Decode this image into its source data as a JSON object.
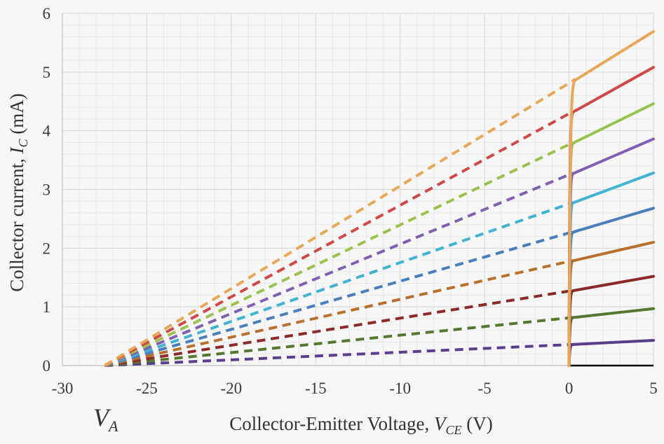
{
  "chart_data": {
    "type": "line",
    "title": "",
    "xlabel": {
      "text": "Collector-Emitter Voltage, ",
      "symbol": "V",
      "subscript": "CE",
      "unit": " (V)"
    },
    "ylabel": {
      "text": "Collector current, ",
      "symbol": "I",
      "subscript": "C",
      "unit": " (mA)"
    },
    "annotation": {
      "symbol": "V",
      "subscript": "A",
      "x": -27.5
    },
    "xlim": [
      -30,
      5
    ],
    "ylim": [
      0,
      6
    ],
    "xticks": [
      -30,
      -25,
      -20,
      -15,
      -10,
      -5,
      0,
      5
    ],
    "yticks": [
      0,
      1,
      2,
      3,
      4,
      5,
      6
    ],
    "xtick_labels": [
      "-30",
      "-25",
      "-20",
      "-15",
      "-10",
      "-5",
      "0",
      "5"
    ],
    "ytick_labels": [
      "0",
      "1",
      "2",
      "3",
      "4",
      "5",
      "6"
    ],
    "grid": true,
    "early_voltage": -27.5,
    "series": [
      {
        "color": "#000000",
        "values": [
          [
            0,
            0
          ],
          [
            5,
            0
          ]
        ]
      },
      {
        "color": "#5a3f8c",
        "knee_x": 0.25,
        "sat_y": 0.36,
        "values": [
          [
            -27.5,
            0
          ],
          [
            0.25,
            0.36
          ],
          [
            5,
            0.43
          ]
        ]
      },
      {
        "color": "#56772f",
        "knee_x": 0.25,
        "sat_y": 0.82,
        "values": [
          [
            -27.5,
            0
          ],
          [
            0.25,
            0.82
          ],
          [
            5,
            0.97
          ]
        ]
      },
      {
        "color": "#8c2a2a",
        "knee_x": 0.25,
        "sat_y": 1.28,
        "values": [
          [
            -27.5,
            0
          ],
          [
            0.25,
            1.28
          ],
          [
            5,
            1.52
          ]
        ]
      },
      {
        "color": "#b8702c",
        "knee_x": 0.25,
        "sat_y": 1.79,
        "values": [
          [
            -27.5,
            0
          ],
          [
            0.25,
            1.79
          ],
          [
            5,
            2.1
          ]
        ]
      },
      {
        "color": "#4a7ebd",
        "knee_x": 0.25,
        "sat_y": 2.28,
        "values": [
          [
            -27.5,
            0
          ],
          [
            0.25,
            2.28
          ],
          [
            5,
            2.68
          ]
        ]
      },
      {
        "color": "#42b4d2",
        "knee_x": 0.25,
        "sat_y": 2.78,
        "values": [
          [
            -27.5,
            0
          ],
          [
            0.25,
            2.78
          ],
          [
            5,
            3.28
          ]
        ]
      },
      {
        "color": "#8060b0",
        "knee_x": 0.25,
        "sat_y": 3.28,
        "values": [
          [
            -27.5,
            0
          ],
          [
            0.25,
            3.28
          ],
          [
            5,
            3.86
          ]
        ]
      },
      {
        "color": "#9cc24e",
        "knee_x": 0.25,
        "sat_y": 3.8,
        "values": [
          [
            -27.5,
            0
          ],
          [
            0.25,
            3.8
          ],
          [
            5,
            4.46
          ]
        ]
      },
      {
        "color": "#d04848",
        "knee_x": 0.25,
        "sat_y": 4.33,
        "values": [
          [
            -27.5,
            0
          ],
          [
            0.25,
            4.33
          ],
          [
            5,
            5.08
          ]
        ]
      },
      {
        "color": "#e8a85a",
        "knee_x": 0.4,
        "sat_y": 4.88,
        "values": [
          [
            -27.5,
            0
          ],
          [
            0.4,
            4.88
          ],
          [
            5,
            5.69
          ]
        ]
      }
    ]
  }
}
